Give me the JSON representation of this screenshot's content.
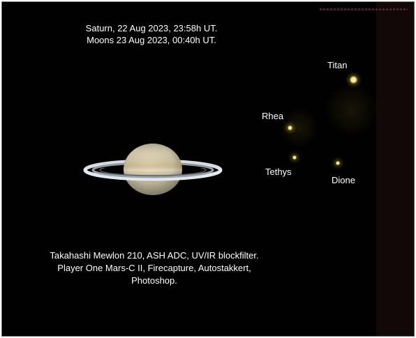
{
  "header": {
    "line1": "Saturn, 22 Aug 2023, 23:58h UT.",
    "line2": "Moons 23 Aug 2023, 00:40h UT."
  },
  "moons": [
    {
      "name": "Titan",
      "label": "Titan"
    },
    {
      "name": "Rhea",
      "label": "Rhea"
    },
    {
      "name": "Tethys",
      "label": "Tethys"
    },
    {
      "name": "Dione",
      "label": "Dione"
    }
  ],
  "footer": {
    "line1": "Takahashi Mewlon 210, ASH ADC, UV/IR blockfilter.",
    "line2": "Player One Mars-C II, Firecapture, Autostakkert,",
    "line3": "Photoshop."
  },
  "colors": {
    "background": "#000000",
    "moon": "#f3e27a",
    "text": "#ffffff"
  }
}
